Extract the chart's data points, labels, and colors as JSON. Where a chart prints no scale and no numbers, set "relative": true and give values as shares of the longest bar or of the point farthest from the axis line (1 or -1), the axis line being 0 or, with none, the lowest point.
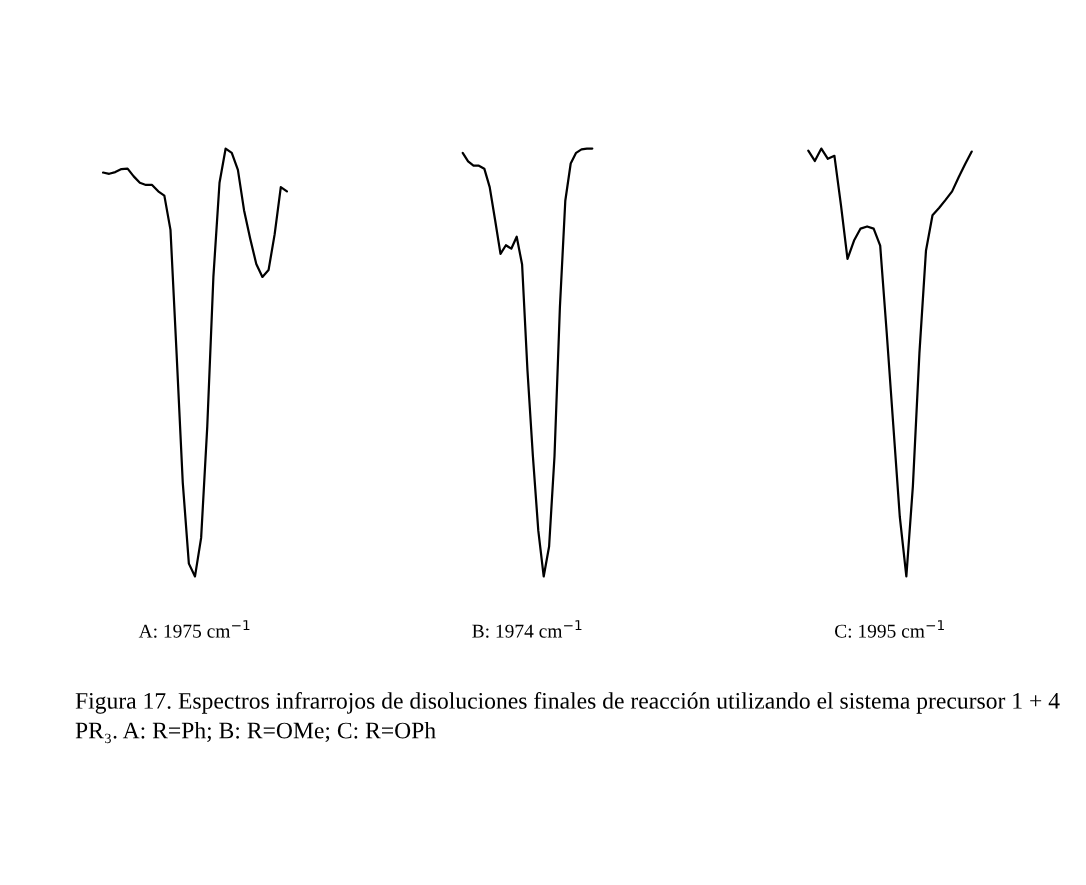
{
  "chart_data": [
    {
      "type": "line",
      "relative": true,
      "tick_labels": false,
      "color": "#000000",
      "xlabel": "A: 1975 cm$^{−1}$",
      "categories": [
        null,
        null,
        null,
        null,
        null,
        null,
        null,
        null,
        null,
        null,
        null,
        null,
        null,
        null,
        null,
        null,
        null,
        null,
        null,
        null,
        null,
        null,
        null,
        null,
        null,
        null,
        null,
        null,
        null,
        null,
        null
      ],
      "values": [
        0.944,
        0.941,
        0.945,
        0.952,
        0.953,
        0.935,
        0.92,
        0.915,
        0.915,
        0.9,
        0.89,
        0.81,
        0.52,
        0.22,
        0.03,
        0,
        0.09,
        0.35,
        0.7,
        0.92,
        1.0,
        0.99,
        0.95,
        0.856,
        0.79,
        0.73,
        0.7,
        0.716,
        0.8,
        0.91,
        0.9
      ],
      "annotations": [
        "Figura 17. Espectros infrarrojos de disoluciones finales de reacción utilizando el sistema precursor 1 + 4 PR₃. A: R=Ph; B: R=OMe; C: R=OPh"
      ]
    },
    {
      "type": "line",
      "relative": true,
      "tick_labels": false,
      "color": "#000000",
      "xlabel": "B: 1974 cm$^{−1}$",
      "categories": [
        null,
        null,
        null,
        null,
        null,
        null,
        null,
        null,
        null,
        null,
        null,
        null,
        null,
        null,
        null,
        null,
        null,
        null,
        null,
        null,
        null,
        null,
        null,
        null,
        null
      ],
      "values": [
        0.99,
        0.97,
        0.96,
        0.96,
        0.953,
        0.91,
        0.833,
        0.754,
        0.774,
        0.766,
        0.794,
        0.729,
        0.48,
        0.281,
        0.107,
        0,
        0.07,
        0.281,
        0.629,
        0.878,
        0.965,
        0.99,
        0.998,
        1.0,
        1.0
      ]
    },
    {
      "type": "line",
      "relative": true,
      "tick_labels": false,
      "color": "#000000",
      "xlabel": "C: 1995 cm$^{−1}$",
      "categories": [
        null,
        null,
        null,
        null,
        null,
        null,
        null,
        null,
        null,
        null,
        null,
        null,
        null,
        null,
        null,
        null,
        null,
        null,
        null,
        null,
        null,
        null,
        null,
        null,
        null,
        null
      ],
      "values": [
        0.995,
        0.971,
        1.0,
        0.976,
        0.983,
        0.868,
        0.742,
        0.785,
        0.813,
        0.818,
        0.813,
        0.773,
        0.569,
        0.354,
        0.139,
        0,
        0.211,
        0.522,
        0.761,
        0.844,
        0.861,
        0.88,
        0.9,
        0.933,
        0.964,
        0.993
      ]
    }
  ]
}
